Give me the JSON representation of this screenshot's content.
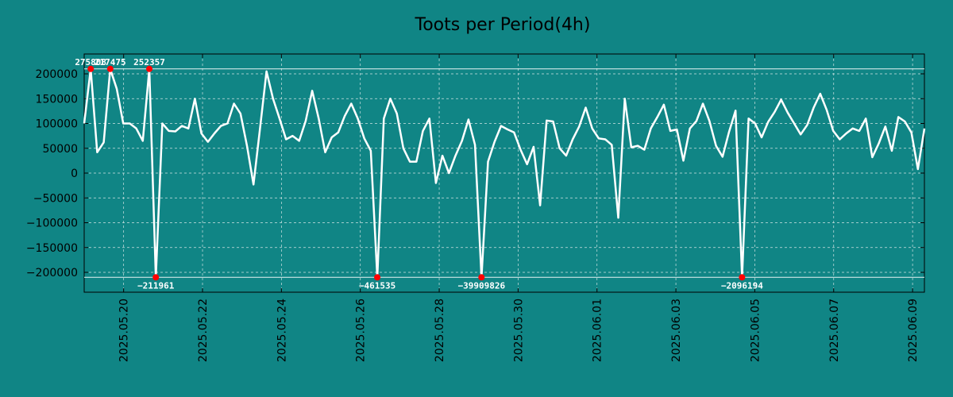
{
  "chart_data": {
    "type": "line",
    "title": "Toots per Period(4h)",
    "xlabel": "",
    "ylabel": "",
    "ylim": [
      -240000,
      240000
    ],
    "yticks": [
      200000,
      150000,
      100000,
      50000,
      0,
      -50000,
      -100000,
      -150000,
      -200000
    ],
    "ytick_labels": [
      "200000",
      "150000",
      "100000",
      "50000",
      "0",
      "−50000",
      "−100000",
      "−150000",
      "−200000"
    ],
    "xlim_days": [
      0,
      21.3
    ],
    "xticks": [
      {
        "day": 1,
        "label": "2025.05.20"
      },
      {
        "day": 3,
        "label": "2025.05.22"
      },
      {
        "day": 5,
        "label": "2025.05.24"
      },
      {
        "day": 7,
        "label": "2025.05.26"
      },
      {
        "day": 9,
        "label": "2025.05.28"
      },
      {
        "day": 11,
        "label": "2025.05.30"
      },
      {
        "day": 13,
        "label": "2025.06.01"
      },
      {
        "day": 15,
        "label": "2025.06.03"
      },
      {
        "day": 17,
        "label": "2025.06.05"
      },
      {
        "day": 19,
        "label": "2025.06.07"
      },
      {
        "day": 21,
        "label": "2025.06.09"
      }
    ],
    "grid": true,
    "clip_upper": 210000,
    "clip_lower": -210000,
    "series": [
      {
        "name": "Toots per Period(4h)",
        "color": "#ffffff",
        "values": [
          100000,
          210000,
          42000,
          62000,
          210000,
          170000,
          100000,
          100000,
          90000,
          65000,
          210000,
          -210000,
          100000,
          85000,
          84000,
          95000,
          90000,
          150000,
          80000,
          63000,
          80000,
          95000,
          100000,
          140000,
          120000,
          55000,
          -23000,
          90000,
          205000,
          150000,
          110000,
          68000,
          75000,
          65000,
          105000,
          166000,
          110000,
          42000,
          72000,
          82000,
          115000,
          140000,
          110000,
          70000,
          45000,
          -210000,
          110000,
          150000,
          120000,
          50000,
          23000,
          23000,
          85000,
          110000,
          -20000,
          35000,
          0,
          35000,
          65000,
          108000,
          57000,
          -210000,
          23000,
          63000,
          95000,
          88000,
          82000,
          47000,
          18000,
          53000,
          -65000,
          106000,
          104000,
          50000,
          35000,
          68000,
          94000,
          132000,
          90000,
          70000,
          68000,
          57000,
          -90000,
          150000,
          52000,
          55000,
          47000,
          90000,
          113000,
          138000,
          85000,
          88000,
          25000,
          90000,
          105000,
          140000,
          105000,
          55000,
          33000,
          83000,
          126000,
          -210000,
          110000,
          100000,
          72000,
          103000,
          123000,
          148000,
          122000,
          100000,
          78000,
          97000,
          132000,
          160000,
          127000,
          85000,
          68000,
          80000,
          90000,
          85000,
          110000,
          32000,
          60000,
          94000,
          45000,
          113000,
          104000,
          82000,
          8000,
          90000
        ]
      }
    ],
    "peak_markers": [
      {
        "index": 1,
        "label": "275808",
        "side": "top",
        "color": "#ff0000"
      },
      {
        "index": 4,
        "label": "217475",
        "side": "top",
        "color": "#ff0000"
      },
      {
        "index": 10,
        "label": "252357",
        "side": "top",
        "color": "#ff0000"
      },
      {
        "index": 11,
        "label": "−211961",
        "side": "bottom",
        "color": "#ff0000"
      },
      {
        "index": 45,
        "label": "−461535",
        "side": "bottom",
        "color": "#ff0000"
      },
      {
        "index": 61,
        "label": "−39909826",
        "side": "bottom",
        "color": "#ff0000"
      },
      {
        "index": 101,
        "label": "−2096194",
        "side": "bottom",
        "color": "#ff0000"
      }
    ]
  },
  "colors": {
    "background": "#108585",
    "line": "#ffffff",
    "marker": "#ff0000",
    "grid": "#cfe3e3"
  }
}
